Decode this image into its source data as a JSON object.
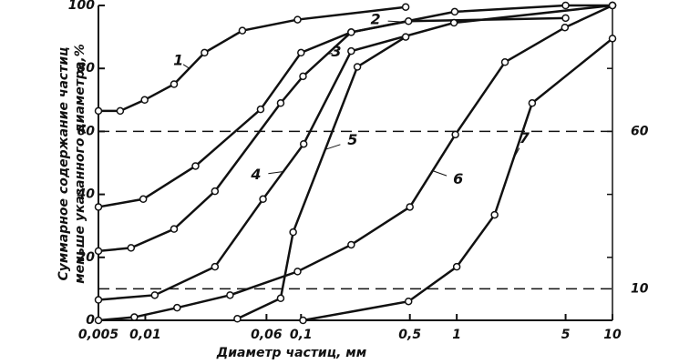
{
  "chart_data": {
    "type": "line",
    "log_x": true,
    "ylabel": [
      "Суммарное содержание частиц",
      "меньше указанного диаметра,%"
    ],
    "xlabel": "Диаметр частиц, мм",
    "xlim": [
      0.005,
      10
    ],
    "ylim": [
      0,
      100
    ],
    "xticks": [
      {
        "value": 0.005,
        "label": "0,005"
      },
      {
        "value": 0.01,
        "label": "0,01"
      },
      {
        "value": 0.06,
        "label": "0,06"
      },
      {
        "value": 0.1,
        "label": "0,1"
      },
      {
        "value": 0.5,
        "label": "0,5"
      },
      1,
      5,
      10
    ],
    "yticks": [
      0,
      20,
      40,
      60,
      80,
      100
    ],
    "reference_lines": [
      60,
      10
    ],
    "color": "#111111",
    "series": [
      {
        "name": "1",
        "x": [
          0.005,
          0.0069,
          0.0099,
          0.0153,
          0.024,
          0.042,
          0.095,
          0.47
        ],
        "values": [
          66.5,
          66.5,
          70,
          75,
          85,
          92,
          95.5,
          99.5
        ]
      },
      {
        "name": "2",
        "x": [
          0.005,
          0.0097,
          0.021,
          0.055,
          0.1,
          0.21,
          0.97,
          5,
          10
        ],
        "values": [
          36,
          38.5,
          49,
          67,
          85,
          91.5,
          98,
          100,
          100
        ]
      },
      {
        "name": "3",
        "x": [
          0.005,
          0.0081,
          0.0153,
          0.028,
          0.074,
          0.103,
          0.21,
          0.49,
          5
        ],
        "values": [
          22,
          23,
          29,
          41,
          69,
          77.5,
          91.5,
          95,
          96
        ]
      },
      {
        "name": "4",
        "x": [
          0.005,
          0.0115,
          0.028,
          0.057,
          0.104,
          0.21,
          0.96,
          10
        ],
        "values": [
          6.5,
          8,
          17,
          38.5,
          56,
          85.5,
          94.5,
          100
        ]
      },
      {
        "name": "5",
        "x": [
          0.039,
          0.074,
          0.089,
          0.23,
          0.47
        ],
        "values": [
          0.5,
          7,
          28,
          80.5,
          90
        ]
      },
      {
        "name": "6",
        "x": [
          0.005,
          0.0085,
          0.016,
          0.035,
          0.095,
          0.21,
          0.5,
          0.98,
          2.04,
          4.95,
          10
        ],
        "values": [
          0,
          1,
          4,
          8,
          15.5,
          24,
          36,
          59,
          82,
          93,
          100
        ]
      },
      {
        "name": "7",
        "x": [
          0.103,
          0.49,
          1.0,
          1.75,
          3.05,
          10
        ],
        "values": [
          0,
          6,
          17,
          33.5,
          69,
          89.5
        ]
      }
    ]
  }
}
